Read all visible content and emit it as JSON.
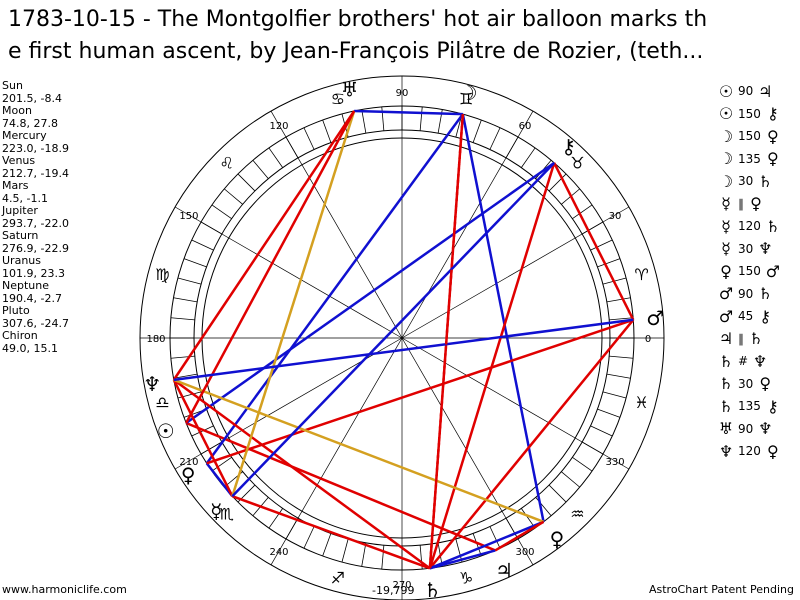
{
  "title": "1783-10-15 - The Montgolfier brothers' hot air balloon marks th\ne first human ascent, by Jean-François Pilâtre de Rozier, (teth...",
  "planets": [
    {
      "name": "Sun",
      "coords": "201.5, -8.4",
      "glyph": "☉"
    },
    {
      "name": "Moon",
      "coords": "74.8, 27.8",
      "glyph": "☽"
    },
    {
      "name": "Mercury",
      "coords": "223.0, -18.9",
      "glyph": "☿"
    },
    {
      "name": "Venus",
      "coords": "212.7, -19.4",
      "glyph": "♀"
    },
    {
      "name": "Mars",
      "coords": "4.5, -1.1",
      "glyph": "♂"
    },
    {
      "name": "Jupiter",
      "coords": "293.7, -22.0",
      "glyph": "♃"
    },
    {
      "name": "Saturn",
      "coords": "276.9, -22.9",
      "glyph": "♄"
    },
    {
      "name": "Uranus",
      "coords": "101.9, 23.3",
      "glyph": "♅"
    },
    {
      "name": "Neptune",
      "coords": "190.4, -2.7",
      "glyph": "♆"
    },
    {
      "name": "Pluto",
      "coords": "307.6, -24.7",
      "glyph": "♀"
    },
    {
      "name": "Chiron",
      "coords": "49.0, 15.1",
      "glyph": "⚷"
    }
  ],
  "aspects": [
    {
      "p1": "☉",
      "angle": "90",
      "p2": "♃"
    },
    {
      "p1": "☉",
      "angle": "150",
      "p2": "⚷"
    },
    {
      "p1": "☽",
      "angle": "150",
      "p2": "♀"
    },
    {
      "p1": "☽",
      "angle": "135",
      "p2": "♀"
    },
    {
      "p1": "☽",
      "angle": "30",
      "p2": "♄"
    },
    {
      "p1": "☿",
      "angle": "∥",
      "p2": "♀"
    },
    {
      "p1": "☿",
      "angle": "120",
      "p2": "♄"
    },
    {
      "p1": "☿",
      "angle": "30",
      "p2": "♆"
    },
    {
      "p1": "♀",
      "angle": "150",
      "p2": "♂"
    },
    {
      "p1": "♂",
      "angle": "90",
      "p2": "♄"
    },
    {
      "p1": "♂",
      "angle": "45",
      "p2": "⚷"
    },
    {
      "p1": "♃",
      "angle": "∥",
      "p2": "♄"
    },
    {
      "p1": "♄",
      "angle": "#",
      "p2": "♆"
    },
    {
      "p1": "♄",
      "angle": "30",
      "p2": "♀"
    },
    {
      "p1": "♄",
      "angle": "135",
      "p2": "⚷"
    },
    {
      "p1": "♅",
      "angle": "90",
      "p2": "♆"
    },
    {
      "p1": "♆",
      "angle": "120",
      "p2": "♀"
    }
  ],
  "degree_labels": [
    "0",
    "30",
    "60",
    "90",
    "120",
    "150",
    "180",
    "210",
    "240",
    "270",
    "300",
    "330"
  ],
  "zodiac_glyphs": [
    "♈",
    "♉",
    "♊",
    "♋",
    "♌",
    "♍",
    "♎",
    "♏",
    "♐",
    "♑",
    "♒",
    "♓"
  ],
  "colors": {
    "red": "#e00000",
    "blue": "#1010d0",
    "gold": "#d4a020",
    "black": "#000000"
  },
  "footer": {
    "left": "www.harmoniclife.com",
    "right": "AstroChart Patent Pending",
    "center": "-19,799"
  }
}
